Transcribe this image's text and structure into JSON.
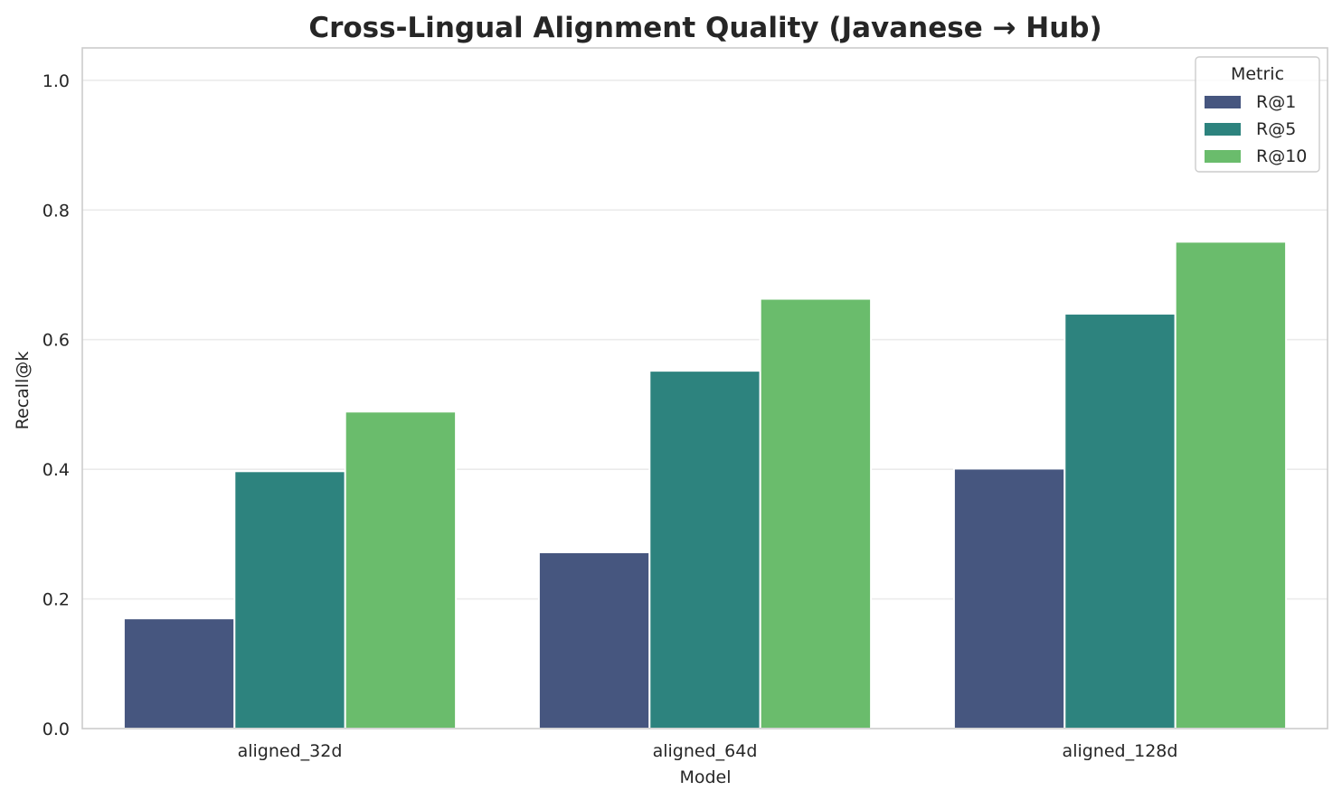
{
  "chart_data": {
    "type": "bar",
    "title": "Cross-Lingual Alignment Quality (Javanese → Hub)",
    "xlabel": "Model",
    "ylabel": "Recall@k",
    "categories": [
      "aligned_32d",
      "aligned_64d",
      "aligned_128d"
    ],
    "series": [
      {
        "name": "R@1",
        "color": "#46567f",
        "values": [
          0.17,
          0.272,
          0.401
        ]
      },
      {
        "name": "R@5",
        "color": "#2d837e",
        "values": [
          0.397,
          0.552,
          0.64
        ]
      },
      {
        "name": "R@10",
        "color": "#6abc6c",
        "values": [
          0.489,
          0.663,
          0.751
        ]
      }
    ],
    "ylim": [
      0.0,
      1.05
    ],
    "yticks": [
      0.0,
      0.2,
      0.4,
      0.6,
      0.8,
      1.0
    ],
    "ytick_labels": [
      "0.0",
      "0.2",
      "0.4",
      "0.6",
      "0.8",
      "1.0"
    ],
    "grid": "horizontal",
    "legend": {
      "title": "Metric",
      "placement": "top-right"
    },
    "colors": {
      "grid": "#ebebeb",
      "spine": "#cccccc",
      "text": "#262626",
      "background": "#ffffff"
    }
  }
}
